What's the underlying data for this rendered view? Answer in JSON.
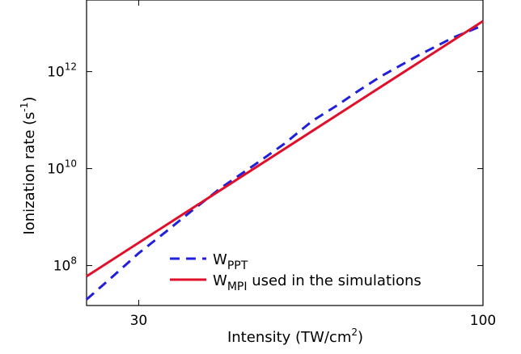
{
  "chart_data": {
    "type": "line",
    "xlabel_main": "Intensity (TW/cm",
    "xlabel_sup": "2",
    "xlabel_end": ")",
    "ylabel_main": "Ionization rate (s",
    "ylabel_sup": "-1",
    "ylabel_end": ")",
    "x_scale": "log",
    "y_scale": "log",
    "xlim": [
      25,
      100
    ],
    "ylim": [
      15000000,
      30000000000000
    ],
    "x_ticks": [
      {
        "value": 30,
        "label": "30"
      },
      {
        "value": 100,
        "label": "100"
      }
    ],
    "y_ticks": [
      {
        "value": 100000000,
        "base": "10",
        "exp": "8"
      },
      {
        "value": 10000000000,
        "base": "10",
        "exp": "10"
      },
      {
        "value": 1000000000000,
        "base": "10",
        "exp": "12"
      }
    ],
    "grid": false,
    "legend_position": "bottom-center",
    "series": [
      {
        "name_main": "W",
        "name_sub": "PPT",
        "name_rest": "",
        "color": "#1f1fdc",
        "style": "dashed",
        "x": [
          25,
          27,
          30,
          33,
          36,
          40,
          45,
          50,
          55,
          60,
          65,
          70,
          80,
          90,
          100
        ],
        "y": [
          20000000,
          50000000,
          180000000,
          500000000,
          1300000000,
          4000000000,
          12000000000,
          33000000000,
          95000000000,
          200000000000,
          420000000000,
          800000000000,
          2200000000000,
          5000000000000,
          9000000000000
        ]
      },
      {
        "name_main": "W",
        "name_sub": "MPI",
        "name_rest": " used in the simulations",
        "color": "#e0102a",
        "style": "solid",
        "x": [
          25,
          100
        ],
        "y": [
          60000000,
          11000000000000
        ]
      }
    ]
  }
}
